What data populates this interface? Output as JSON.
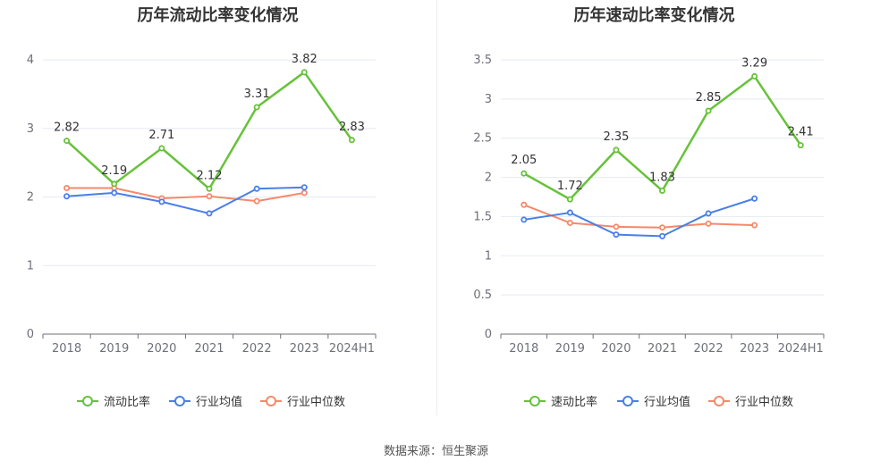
{
  "source_label": "数据来源：恒生聚源",
  "colors": {
    "main": "#67c23a",
    "avg": "#4a7fe6",
    "median": "#f5896a"
  },
  "chart_data": [
    {
      "type": "line",
      "title": "历年流动比率变化情况",
      "categories": [
        "2018",
        "2019",
        "2020",
        "2021",
        "2022",
        "2023",
        "2024H1"
      ],
      "ylim": [
        0,
        4
      ],
      "yticks": [
        0,
        1,
        2,
        3,
        4
      ],
      "ytick_labels": [
        "0",
        "1",
        "2",
        "3",
        "4"
      ],
      "legend_position": "bottom",
      "series": [
        {
          "name": "流动比率",
          "values": [
            2.82,
            2.19,
            2.71,
            2.12,
            3.31,
            3.82,
            2.83
          ],
          "labels": [
            "2.82",
            "2.19",
            "2.71",
            "2.12",
            "3.31",
            "3.82",
            "2.83"
          ],
          "color": "#67c23a"
        },
        {
          "name": "行业均值",
          "values": [
            2.01,
            2.06,
            1.93,
            1.76,
            2.12,
            2.14,
            null
          ],
          "color": "#4a7fe6"
        },
        {
          "name": "行业中位数",
          "values": [
            2.13,
            2.13,
            1.98,
            2.01,
            1.94,
            2.06,
            null
          ],
          "color": "#f5896a"
        }
      ]
    },
    {
      "type": "line",
      "title": "历年速动比率变化情况",
      "categories": [
        "2018",
        "2019",
        "2020",
        "2021",
        "2022",
        "2023",
        "2024H1"
      ],
      "ylim": [
        0,
        3.5
      ],
      "yticks": [
        0,
        0.5,
        1,
        1.5,
        2,
        2.5,
        3,
        3.5
      ],
      "ytick_labels": [
        "0",
        "0.5",
        "1",
        "1.5",
        "2",
        "2.5",
        "3",
        "3.5"
      ],
      "legend_position": "bottom",
      "series": [
        {
          "name": "速动比率",
          "values": [
            2.05,
            1.72,
            2.35,
            1.83,
            2.85,
            3.29,
            2.41
          ],
          "labels": [
            "2.05",
            "1.72",
            "2.35",
            "1.83",
            "2.85",
            "3.29",
            "2.41"
          ],
          "color": "#67c23a"
        },
        {
          "name": "行业均值",
          "values": [
            1.46,
            1.55,
            1.27,
            1.25,
            1.54,
            1.73,
            null
          ],
          "color": "#4a7fe6"
        },
        {
          "name": "行业中位数",
          "values": [
            1.65,
            1.42,
            1.37,
            1.36,
            1.41,
            1.39,
            null
          ],
          "color": "#f5896a"
        }
      ]
    }
  ]
}
